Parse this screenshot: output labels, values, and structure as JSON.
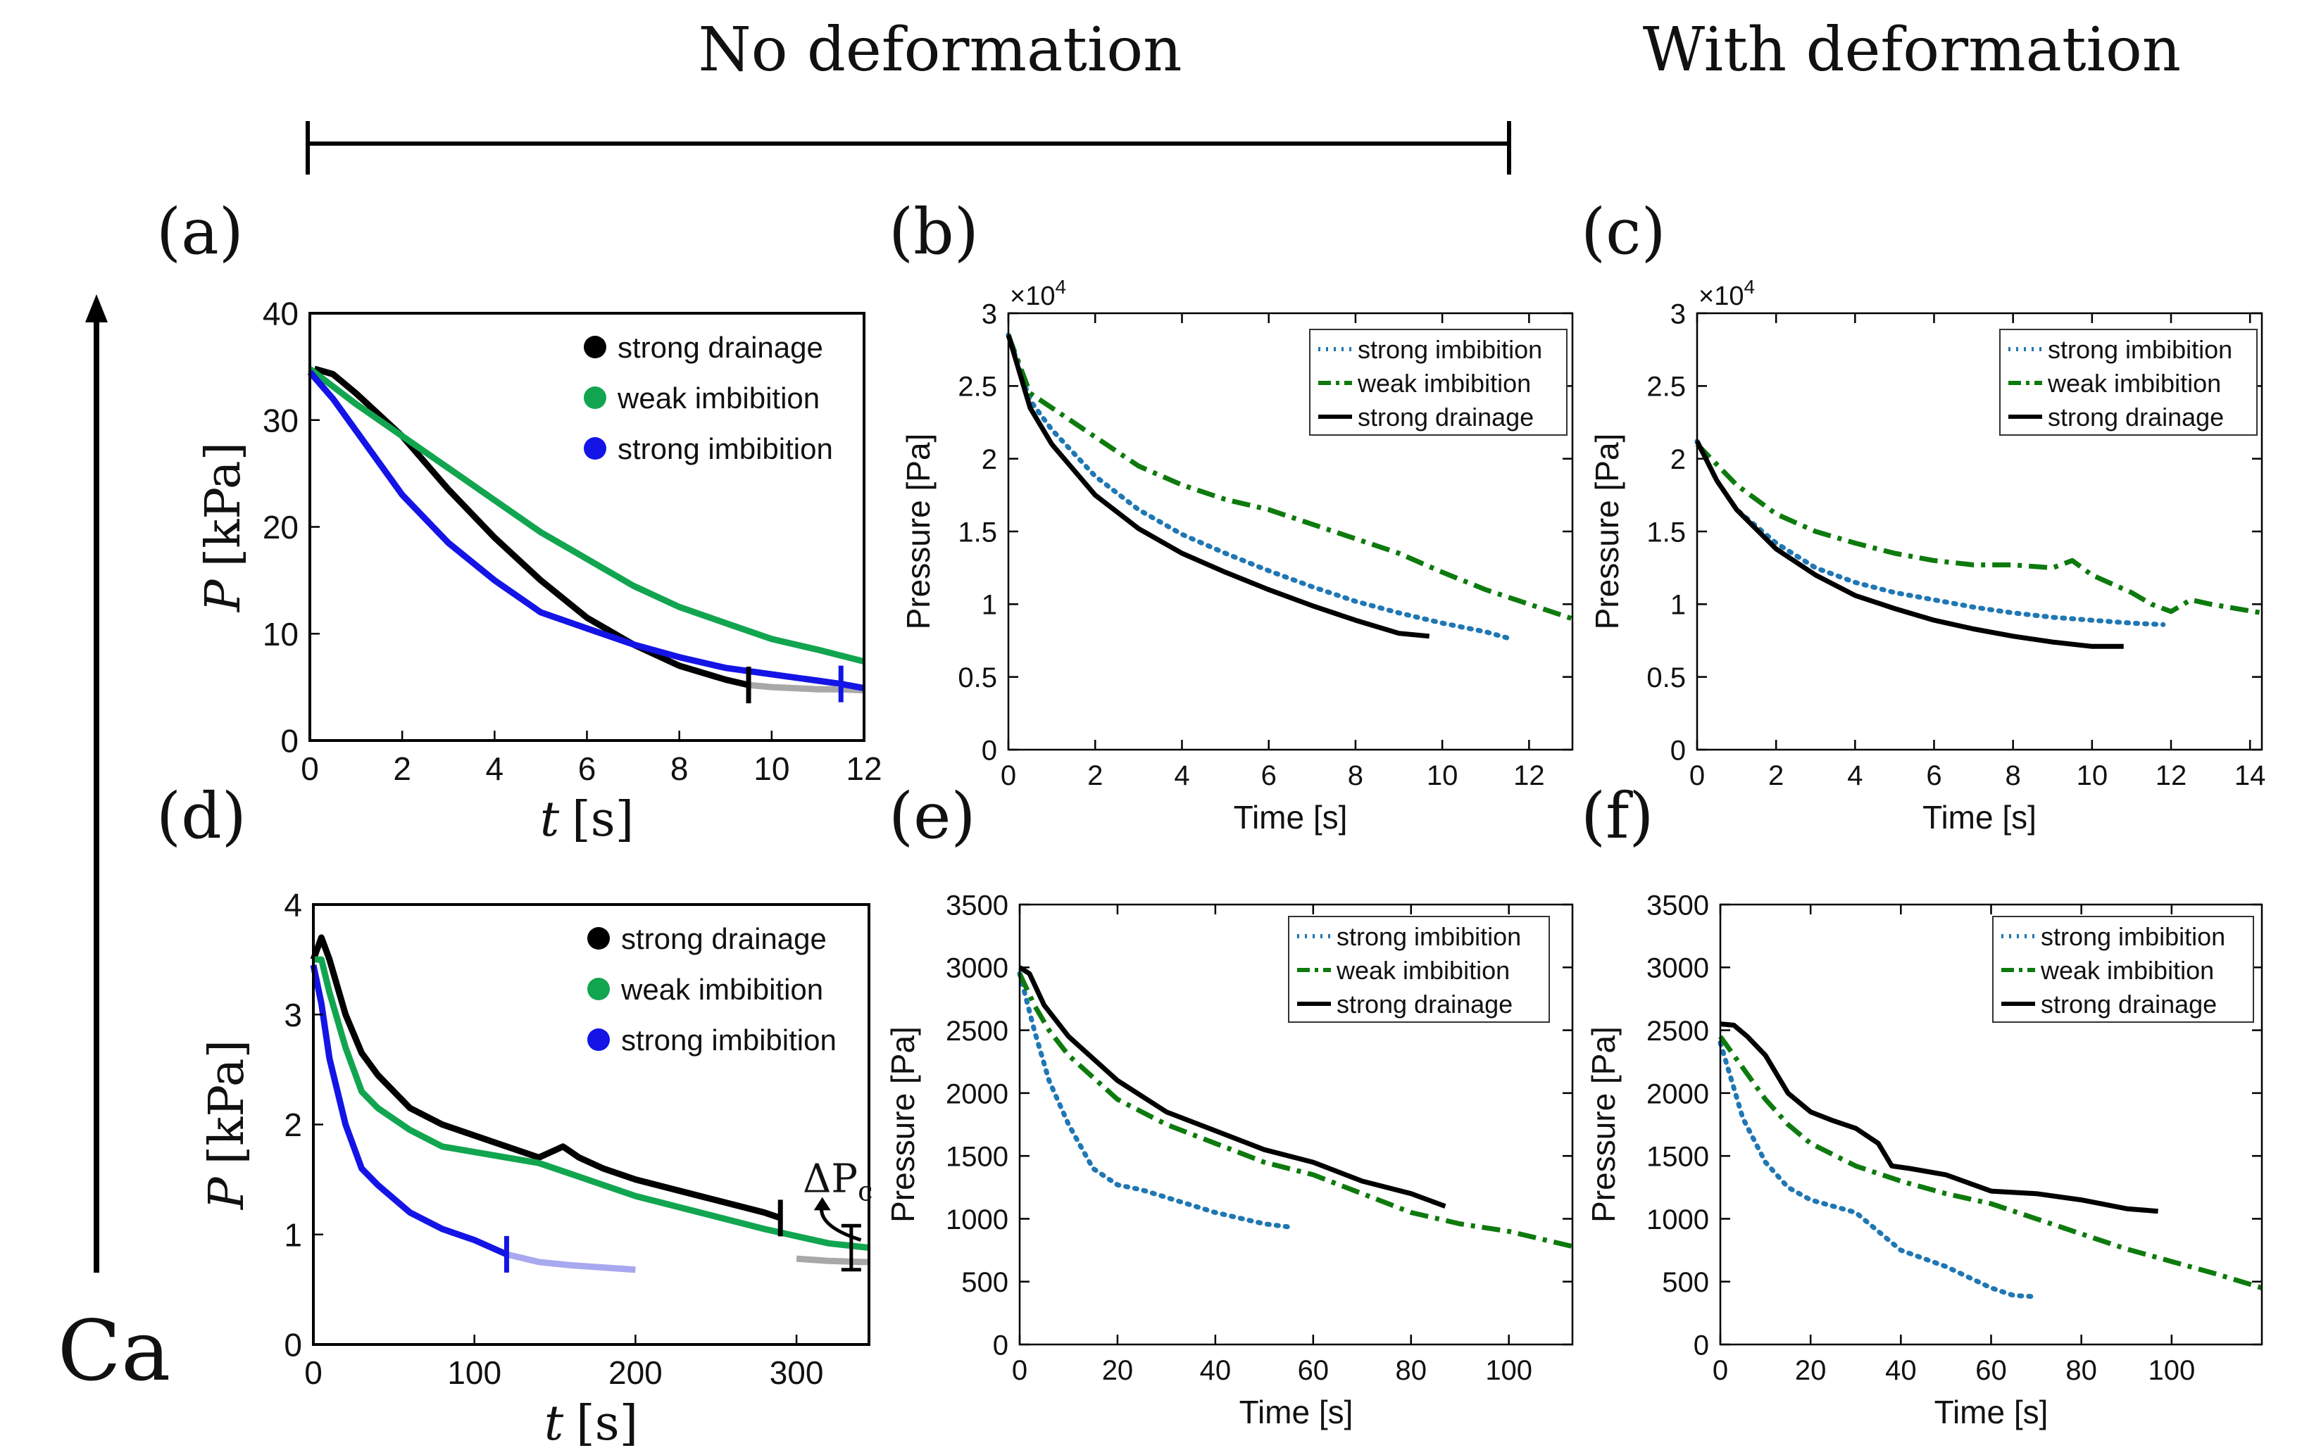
{
  "header": {
    "no_deformation": "No deformation",
    "with_deformation": "With deformation",
    "ca_label": "Ca"
  },
  "colors": {
    "exp_black": "#000000",
    "exp_green": "#12a550",
    "exp_blue": "#1414e6",
    "exp_gray": "#a8a8a8",
    "exp_lightblue": "#a8a8f0",
    "sim_blue": "#1f77b4",
    "sim_green": "#0d7a0d",
    "sim_black": "#000000"
  },
  "chart_data": [
    {
      "panel": "(a)",
      "type": "line",
      "xlabel_var": "t",
      "xlabel_unit": "[s]",
      "ylabel_var": "P",
      "ylabel_unit": "[kPa]",
      "xlim": [
        0,
        12
      ],
      "ylim": [
        0,
        40
      ],
      "xticks": [
        "0",
        "2",
        "4",
        "6",
        "8",
        "10",
        "12"
      ],
      "yticks": [
        "0",
        "10",
        "20",
        "30",
        "40"
      ],
      "legend": [
        "strong drainage",
        "weak imbibition",
        "strong imbibition"
      ],
      "series": [
        {
          "name": "strong drainage",
          "color": "#000000",
          "style": "exp",
          "x": [
            0.1,
            0.5,
            1,
            2,
            3,
            4,
            5,
            6,
            7,
            8,
            9,
            9.5
          ],
          "y": [
            34.8,
            34.3,
            32.5,
            28.5,
            23.5,
            19,
            15,
            11.5,
            9,
            7,
            5.7,
            5.2
          ]
        },
        {
          "name": "weak imbibition",
          "color": "#12a550",
          "style": "exp",
          "x": [
            0,
            1,
            2,
            3,
            4,
            5,
            6,
            7,
            8,
            9,
            10,
            11,
            12
          ],
          "y": [
            34.8,
            31.5,
            28.5,
            25.5,
            22.5,
            19.5,
            17,
            14.5,
            12.5,
            11,
            9.5,
            8.5,
            7.4
          ]
        },
        {
          "name": "strong imbibition",
          "color": "#1414e6",
          "style": "exp",
          "x": [
            0,
            0.5,
            1,
            2,
            3,
            4,
            5,
            6,
            7,
            8,
            9,
            10,
            11.5
          ],
          "y": [
            34.5,
            32,
            29,
            23,
            18.5,
            15,
            12,
            10.5,
            9,
            7.8,
            6.8,
            6.2,
            5.3
          ]
        },
        {
          "name": "",
          "color": "#a8a8a8",
          "style": "exp",
          "x": [
            9.5,
            10,
            10.5,
            11,
            11.5,
            12
          ],
          "y": [
            5.2,
            5.0,
            4.9,
            4.8,
            4.8,
            4.7
          ]
        },
        {
          "name": "",
          "color": "#1414e6",
          "style": "exp",
          "x": [
            11.5,
            12
          ],
          "y": [
            5.3,
            4.9
          ]
        }
      ],
      "end_marks": [
        {
          "x": 9.5,
          "y": 5.2,
          "color": "#000000"
        },
        {
          "x": 11.5,
          "y": 5.3,
          "color": "#1414e6"
        }
      ]
    },
    {
      "panel": "(b)",
      "type": "line",
      "xlabel": "Time [s]",
      "ylabel": "Pressure [Pa]",
      "exponent_label": "×10",
      "exponent_power": "4",
      "xlim": [
        0,
        13
      ],
      "ylim": [
        0,
        3
      ],
      "xticks": [
        "0",
        "2",
        "4",
        "6",
        "8",
        "10",
        "12"
      ],
      "yticks": [
        "0",
        "0.5",
        "1",
        "1.5",
        "2",
        "2.5",
        "3"
      ],
      "legend": [
        "strong imbibition",
        "weak imbibition",
        "strong drainage"
      ],
      "series": [
        {
          "name": "strong imbibition",
          "color": "#1f77b4",
          "style": "dotted",
          "x": [
            0,
            0.5,
            1,
            2,
            3,
            4,
            5,
            6,
            7,
            8,
            9,
            10,
            11,
            11.6
          ],
          "y": [
            2.85,
            2.4,
            2.2,
            1.88,
            1.65,
            1.48,
            1.35,
            1.23,
            1.12,
            1.02,
            0.94,
            0.87,
            0.81,
            0.76
          ]
        },
        {
          "name": "weak imbibition",
          "color": "#0d7a0d",
          "style": "dashdot",
          "x": [
            0,
            0.5,
            1,
            2,
            3,
            4,
            5,
            6,
            7,
            8,
            9,
            10,
            11,
            12,
            13
          ],
          "y": [
            2.85,
            2.45,
            2.35,
            2.15,
            1.95,
            1.82,
            1.72,
            1.65,
            1.55,
            1.45,
            1.35,
            1.22,
            1.1,
            1.0,
            0.9
          ]
        },
        {
          "name": "strong drainage",
          "color": "#000000",
          "style": "solid",
          "x": [
            0,
            0.5,
            1,
            2,
            3,
            4,
            5,
            6,
            7,
            8,
            9,
            9.7
          ],
          "y": [
            2.85,
            2.35,
            2.1,
            1.75,
            1.52,
            1.35,
            1.22,
            1.1,
            0.99,
            0.89,
            0.8,
            0.78
          ]
        }
      ]
    },
    {
      "panel": "(c)",
      "type": "line",
      "xlabel": "Time [s]",
      "ylabel": "Pressure [Pa]",
      "exponent_label": "×10",
      "exponent_power": "4",
      "xlim": [
        0,
        14.3
      ],
      "ylim": [
        0,
        3
      ],
      "xticks": [
        "0",
        "2",
        "4",
        "6",
        "8",
        "10",
        "12",
        "14"
      ],
      "yticks": [
        "0",
        "0.5",
        "1",
        "1.5",
        "2",
        "2.5",
        "3"
      ],
      "legend": [
        "strong imbibition",
        "weak imbibition",
        "strong drainage"
      ],
      "series": [
        {
          "name": "strong imbibition",
          "color": "#1f77b4",
          "style": "dotted",
          "x": [
            0,
            0.5,
            1,
            2,
            3,
            4,
            5,
            6,
            7,
            8,
            9,
            10,
            11,
            11.8
          ],
          "y": [
            2.12,
            1.85,
            1.65,
            1.42,
            1.25,
            1.15,
            1.08,
            1.03,
            0.98,
            0.94,
            0.91,
            0.89,
            0.87,
            0.86
          ]
        },
        {
          "name": "weak imbibition",
          "color": "#0d7a0d",
          "style": "dashdot",
          "x": [
            0,
            1,
            2,
            3,
            4,
            5,
            6,
            7,
            8,
            9,
            9.5,
            10,
            11,
            11.5,
            12,
            12.5,
            13,
            14.3
          ],
          "y": [
            2.1,
            1.82,
            1.62,
            1.5,
            1.42,
            1.35,
            1.3,
            1.27,
            1.27,
            1.25,
            1.3,
            1.2,
            1.08,
            1.0,
            0.95,
            1.03,
            1.0,
            0.94
          ]
        },
        {
          "name": "strong drainage",
          "color": "#000000",
          "style": "solid",
          "x": [
            0,
            0.5,
            1,
            2,
            3,
            4,
            5,
            6,
            7,
            8,
            9,
            10,
            10.8
          ],
          "y": [
            2.12,
            1.85,
            1.65,
            1.38,
            1.2,
            1.06,
            0.97,
            0.89,
            0.83,
            0.78,
            0.74,
            0.71,
            0.71
          ]
        }
      ]
    },
    {
      "panel": "(d)",
      "type": "line",
      "xlabel_var": "t",
      "xlabel_unit": "[s]",
      "ylabel_var": "P",
      "ylabel_unit": "[kPa]",
      "xlim": [
        0,
        345
      ],
      "ylim": [
        0,
        4
      ],
      "xticks": [
        "0",
        "100",
        "200",
        "300"
      ],
      "yticks": [
        "0",
        "1",
        "2",
        "3",
        "4"
      ],
      "legend": [
        "strong drainage",
        "weak imbibition",
        "strong imbibition"
      ],
      "annotation": "ΔP",
      "annotation_sub": "c",
      "series": [
        {
          "name": "strong drainage",
          "color": "#000000",
          "style": "exp",
          "x": [
            0,
            5,
            10,
            20,
            30,
            40,
            60,
            80,
            100,
            120,
            140,
            155,
            165,
            180,
            200,
            240,
            280,
            290
          ],
          "y": [
            3.5,
            3.7,
            3.5,
            3.0,
            2.65,
            2.45,
            2.15,
            2.0,
            1.9,
            1.8,
            1.7,
            1.8,
            1.7,
            1.6,
            1.5,
            1.35,
            1.2,
            1.15
          ]
        },
        {
          "name": "weak imbibition",
          "color": "#12a550",
          "style": "exp",
          "x": [
            0,
            5,
            10,
            20,
            30,
            40,
            60,
            80,
            100,
            120,
            140,
            160,
            200,
            240,
            280,
            320,
            345
          ],
          "y": [
            3.5,
            3.5,
            3.2,
            2.7,
            2.3,
            2.15,
            1.95,
            1.8,
            1.75,
            1.7,
            1.65,
            1.55,
            1.35,
            1.2,
            1.05,
            0.92,
            0.88
          ]
        },
        {
          "name": "strong imbibition",
          "color": "#1414e6",
          "style": "exp",
          "x": [
            0,
            5,
            10,
            20,
            30,
            40,
            60,
            80,
            100,
            120
          ],
          "y": [
            3.45,
            3.1,
            2.6,
            2.0,
            1.6,
            1.45,
            1.2,
            1.05,
            0.95,
            0.82
          ]
        },
        {
          "name": "",
          "color": "#a8a8f0",
          "style": "exp",
          "x": [
            120,
            140,
            160,
            180,
            200
          ],
          "y": [
            0.82,
            0.75,
            0.72,
            0.7,
            0.68
          ]
        },
        {
          "name": "",
          "color": "#a8a8a8",
          "style": "exp",
          "x": [
            300,
            320,
            340,
            345
          ],
          "y": [
            0.78,
            0.76,
            0.75,
            0.75
          ]
        }
      ],
      "end_marks": [
        {
          "x": 120,
          "y": 0.82,
          "color": "#1414e6"
        },
        {
          "x": 290,
          "y": 1.15,
          "color": "#000000"
        }
      ]
    },
    {
      "panel": "(e)",
      "type": "line",
      "xlabel": "Time [s]",
      "ylabel": "Pressure [Pa]",
      "xlim": [
        0,
        113
      ],
      "ylim": [
        0,
        3500
      ],
      "xticks": [
        "0",
        "20",
        "40",
        "60",
        "80",
        "100"
      ],
      "yticks": [
        "0",
        "500",
        "1000",
        "1500",
        "2000",
        "2500",
        "3000",
        "3500"
      ],
      "legend": [
        "strong imbibition",
        "weak imbibition",
        "strong drainage"
      ],
      "series": [
        {
          "name": "strong imbibition",
          "color": "#1f77b4",
          "style": "dotted",
          "x": [
            0,
            3,
            6,
            10,
            15,
            20,
            25,
            30,
            40,
            50,
            56
          ],
          "y": [
            2950,
            2500,
            2100,
            1750,
            1400,
            1270,
            1230,
            1170,
            1050,
            960,
            930
          ]
        },
        {
          "name": "weak imbibition",
          "color": "#0d7a0d",
          "style": "dashdot",
          "x": [
            0,
            3,
            6,
            10,
            20,
            30,
            40,
            50,
            60,
            70,
            80,
            90,
            100,
            113
          ],
          "y": [
            2950,
            2700,
            2500,
            2300,
            1950,
            1750,
            1600,
            1450,
            1350,
            1200,
            1050,
            960,
            900,
            780
          ]
        },
        {
          "name": "strong drainage",
          "color": "#000000",
          "style": "solid",
          "x": [
            0,
            2,
            5,
            10,
            20,
            30,
            40,
            50,
            60,
            70,
            80,
            87
          ],
          "y": [
            3000,
            2950,
            2700,
            2450,
            2100,
            1850,
            1700,
            1550,
            1450,
            1300,
            1200,
            1100
          ]
        }
      ]
    },
    {
      "panel": "(f)",
      "type": "line",
      "xlabel": "Time [s]",
      "ylabel": "Pressure [Pa]",
      "xlim": [
        0,
        120
      ],
      "ylim": [
        0,
        3500
      ],
      "xticks": [
        "0",
        "20",
        "40",
        "60",
        "80",
        "100"
      ],
      "yticks": [
        "0",
        "500",
        "1000",
        "1500",
        "2000",
        "2500",
        "3000",
        "3500"
      ],
      "legend": [
        "strong imbibition",
        "weak imbibition",
        "strong drainage"
      ],
      "series": [
        {
          "name": "strong imbibition",
          "color": "#1f77b4",
          "style": "dotted",
          "x": [
            0,
            5,
            10,
            15,
            20,
            25,
            30,
            35,
            40,
            50,
            60,
            65,
            70
          ],
          "y": [
            2400,
            1800,
            1450,
            1250,
            1150,
            1100,
            1050,
            900,
            750,
            620,
            450,
            390,
            380
          ]
        },
        {
          "name": "weak imbibition",
          "color": "#0d7a0d",
          "style": "dashdot",
          "x": [
            0,
            5,
            10,
            15,
            20,
            30,
            40,
            50,
            60,
            70,
            80,
            90,
            100,
            110,
            120
          ],
          "y": [
            2450,
            2200,
            1950,
            1750,
            1600,
            1420,
            1300,
            1200,
            1120,
            1000,
            880,
            760,
            660,
            560,
            450
          ]
        },
        {
          "name": "strong drainage",
          "color": "#000000",
          "style": "solid",
          "x": [
            0,
            3,
            6,
            10,
            15,
            20,
            25,
            30,
            35,
            38,
            42,
            50,
            60,
            70,
            80,
            90,
            97
          ],
          "y": [
            2550,
            2540,
            2450,
            2300,
            2000,
            1850,
            1780,
            1720,
            1600,
            1420,
            1400,
            1350,
            1220,
            1200,
            1150,
            1080,
            1060
          ]
        }
      ]
    }
  ]
}
